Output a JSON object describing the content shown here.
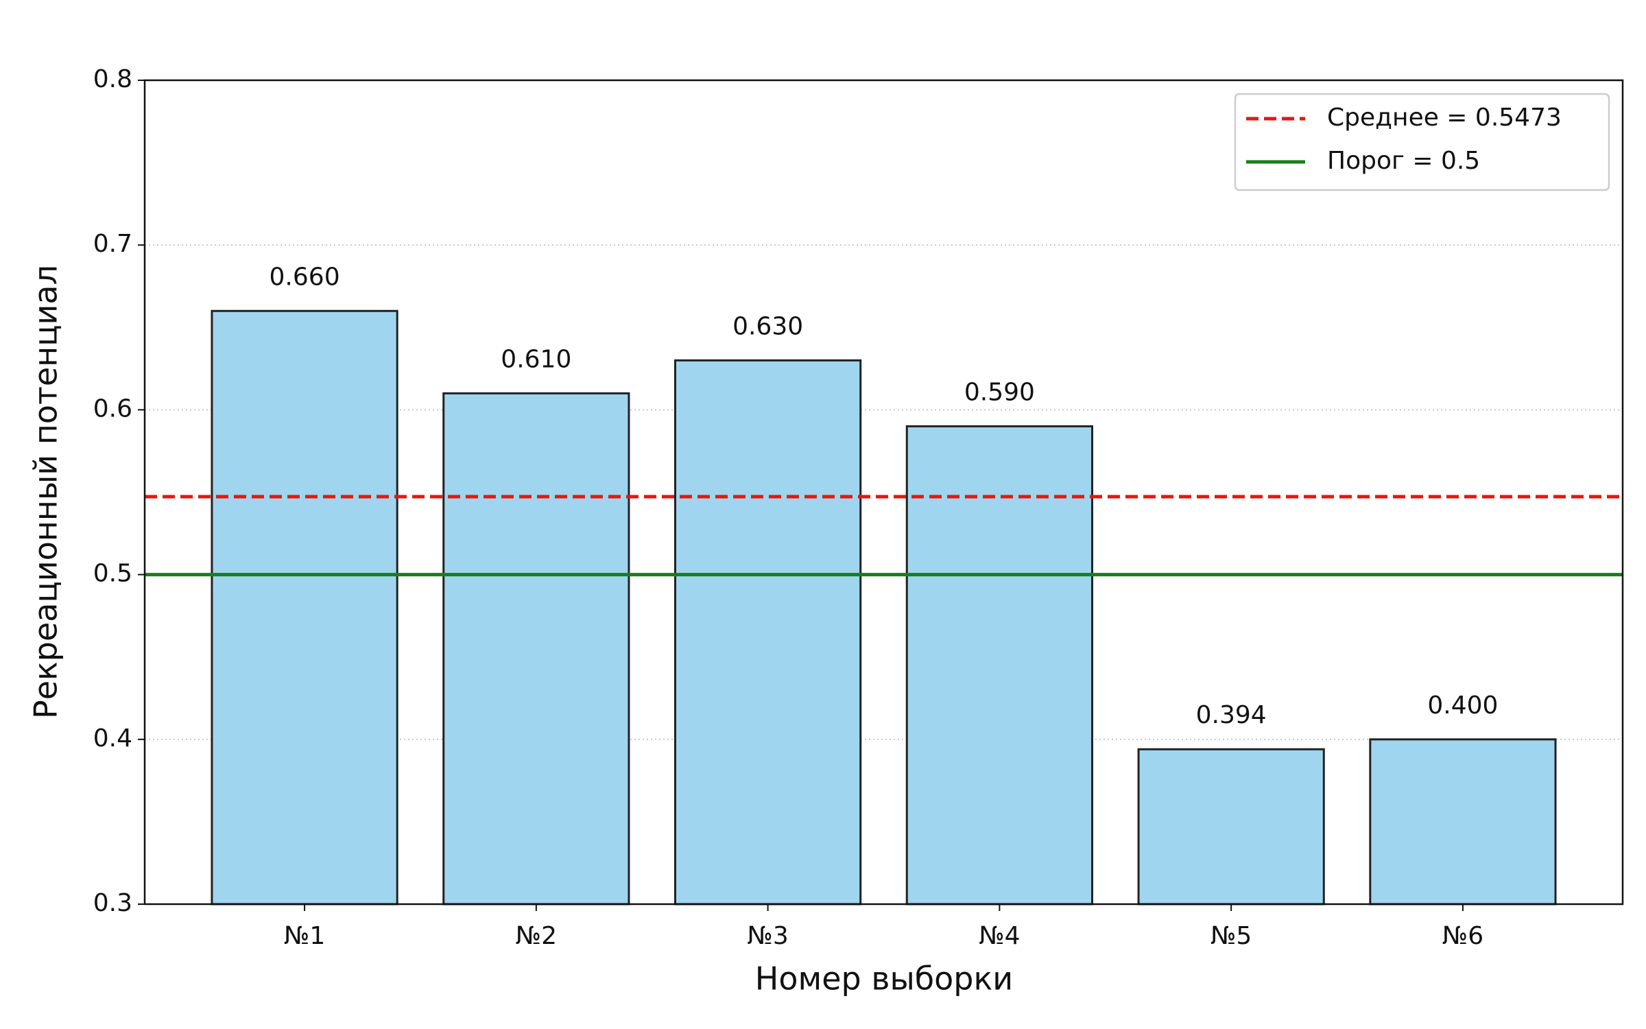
{
  "chart_data": {
    "type": "bar",
    "x_label": "Номер выборки",
    "y_label": "Рекреационный потенциал",
    "categories": [
      "№1",
      "№2",
      "№3",
      "№4",
      "№5",
      "№6"
    ],
    "values": [
      0.66,
      0.61,
      0.63,
      0.59,
      0.394,
      0.4
    ],
    "value_labels": [
      "0.660",
      "0.610",
      "0.630",
      "0.590",
      "0.394",
      "0.400"
    ],
    "color": "#a0d5ef",
    "edgecolor": "#222222",
    "ylim": [
      0.3,
      0.8
    ],
    "yticks": [
      0.3,
      0.4,
      0.5,
      0.6,
      0.7,
      0.8
    ],
    "grid": true,
    "legend": "upper right",
    "lines": [
      {
        "name": "Среднее = 0.5473",
        "value": 0.5473,
        "color": "#e8150f",
        "style": "dashed"
      },
      {
        "name": "Порог = 0.5",
        "value": 0.5,
        "color": "#168116",
        "style": "solid"
      }
    ]
  }
}
